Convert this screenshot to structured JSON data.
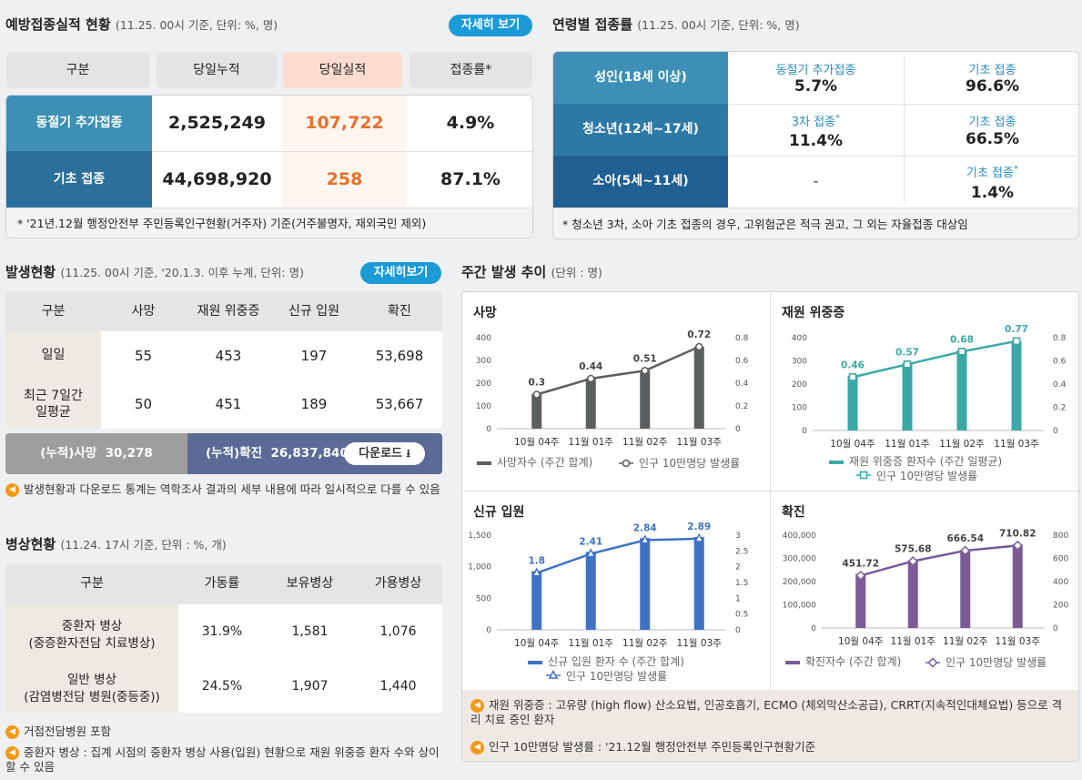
{
  "vaccination": {
    "title": "예방접종실적 현황",
    "subtitle": "(11.25. 00시 기준, 단위: %, 명)",
    "detail_button": "자세히 보기",
    "headers": [
      "구분",
      "당일누적",
      "당일실적",
      "접종률*"
    ],
    "rows": [
      {
        "label": "동절기 추가접종",
        "cumulative": "2,525,249",
        "daily": "107,722",
        "rate": "4.9%"
      },
      {
        "label": "기초 접종",
        "cumulative": "44,698,920",
        "daily": "258",
        "rate": "87.1%"
      }
    ],
    "footnote": "* '21년.12월 행정안전부 주민등록인구현황(거주자) 기준(거주불명자, 재외국민 제외)"
  },
  "age_vaccination": {
    "title": "연령별 접종률",
    "subtitle": "(11.25. 00시 기준, 단위: %, 명)",
    "rows": [
      {
        "label": "성인(18세 이상)",
        "c1_label": "동절기 추가접종",
        "c1_star": "",
        "c1_value": "5.7%",
        "c2_label": "기초 접종",
        "c2_star": "",
        "c2_value": "96.6%"
      },
      {
        "label": "청소년(12세~17세)",
        "c1_label": "3차 접종",
        "c1_star": "*",
        "c1_value": "11.4%",
        "c2_label": "기초 접종",
        "c2_star": "",
        "c2_value": "66.5%"
      },
      {
        "label": "소아(5세~11세)",
        "c1_label": "",
        "c1_star": "",
        "c1_value": "-",
        "c2_label": "기초 접종",
        "c2_star": "*",
        "c2_value": "1.4%"
      }
    ],
    "footnote": "* 청소년 3차, 소아 기초 접종의 경우, 고위험군은 적극 권고, 그 외는 자율접종 대상임"
  },
  "occurrence": {
    "title": "발생현황",
    "subtitle": "(11.25. 00시 기준, '20.1.3. 이후 누계, 단위: 명)",
    "detail_button": "자세히보기",
    "headers": [
      "구분",
      "사망",
      "재원 위중증",
      "신규 입원",
      "확진"
    ],
    "rows": [
      {
        "label": "일일",
        "death": "55",
        "severe": "453",
        "admission": "197",
        "confirmed": "53,698"
      },
      {
        "label": "최근 7일간\n일평균",
        "death": "50",
        "severe": "451",
        "admission": "189",
        "confirmed": "53,667"
      }
    ],
    "cum_death_label": "(누적)사망",
    "cum_death_value": "30,278",
    "cum_confirmed_label": "(누적)확진",
    "cum_confirmed_value": "26,837,840",
    "download_label": "다운로드",
    "note": "발생현황과 다운로드 통계는 역학조사 결과의 세부 내용에 따라 일시적으로 다를 수 있음"
  },
  "beds": {
    "title": "병상현황",
    "subtitle": "(11.24. 17시 기준, 단위 : %, 개)",
    "headers": [
      "구분",
      "가동률",
      "보유병상",
      "가용병상"
    ],
    "rows": [
      {
        "label1": "중환자 병상",
        "label2": "(중증환자전담 치료병상)",
        "rate": "31.9%",
        "owned": "1,581",
        "available": "1,076"
      },
      {
        "label1": "일반 병상",
        "label2": "(감염병전담 병원(중등중))",
        "rate": "24.5%",
        "owned": "1,907",
        "available": "1,440"
      }
    ],
    "note1": "거점전담병원 포함",
    "note2": "중환자 병상 : 집계 시점의 중환자 병상 사용(입원) 현황으로 재원 위중증 환자 수와 상이할 수 있음"
  },
  "weekly": {
    "title": "주간 발생 추이",
    "subtitle": "(단위 : 명)",
    "note1": "재원 위중증 : 고유량 (high flow) 산소요법, 인공호흡기, ECMO (체외막산소공급), CRRT(지속적인대체요법) 등으로 격리 치료 중인 환자",
    "note2": "인구 10만명당 발생률 : '21.12월 행정안전부 주민등록인구현황기준"
  },
  "chart_data": [
    {
      "type": "bar",
      "title": "사망",
      "categories": [
        "10월 04주",
        "11월 01주",
        "11월 02주",
        "11월 03주"
      ],
      "series": [
        {
          "name": "사망자수 (주간 합계)",
          "values": [
            152,
            222,
            255,
            360
          ]
        },
        {
          "name": "인구 10만명당 발생률",
          "type": "line",
          "axis": "right",
          "values": [
            0.3,
            0.44,
            0.51,
            0.72
          ]
        }
      ],
      "ylim": [
        0,
        400
      ],
      "yticks": [
        "0",
        "100",
        "200",
        "300",
        "400"
      ],
      "y2lim": [
        0,
        0.8
      ],
      "y2ticks": [
        "0",
        "0.2",
        "0.4",
        "0.6",
        "0.8"
      ],
      "color": "#5b5f60",
      "line_color": "#5b5f60",
      "marker": "circle"
    },
    {
      "type": "bar",
      "title": "재원 위중증",
      "categories": [
        "10월 04주",
        "11월 01주",
        "11월 02주",
        "11월 03주"
      ],
      "series": [
        {
          "name": "재원 위중증 환자수 (주간 일평균)",
          "values": [
            235,
            290,
            345,
            385
          ]
        },
        {
          "name": "인구 10만명당 발생률",
          "type": "line",
          "axis": "right",
          "values": [
            0.46,
            0.57,
            0.68,
            0.77
          ]
        }
      ],
      "ylim": [
        0,
        400
      ],
      "yticks": [
        "0",
        "100",
        "200",
        "300",
        "400"
      ],
      "y2lim": [
        0,
        0.8
      ],
      "y2ticks": [
        "0",
        "0.2",
        "0.4",
        "0.6",
        "0.8"
      ],
      "color": "#3aa9a6",
      "line_color": "#3aa9a6",
      "marker": "square"
    },
    {
      "type": "bar",
      "title": "신규 입원",
      "categories": [
        "10월 04주",
        "11월 01주",
        "11월 02주",
        "11월 03주"
      ],
      "series": [
        {
          "name": "신규 입원 환자 수 (주간 합계)",
          "values": [
            930,
            1235,
            1455,
            1470
          ]
        },
        {
          "name": "인구 10만명당 발생률",
          "type": "line",
          "axis": "right",
          "values": [
            1.8,
            2.41,
            2.84,
            2.89
          ]
        }
      ],
      "ylim": [
        0,
        1500
      ],
      "yticks": [
        "0",
        "500",
        "1,000",
        "1,500"
      ],
      "y2lim": [
        0,
        3
      ],
      "y2ticks": [
        "0",
        "0.5",
        "1",
        "1.5",
        "2",
        "2.5",
        "3"
      ],
      "color": "#3f72c3",
      "line_color": "#3f72c3",
      "marker": "triangle"
    },
    {
      "type": "bar",
      "title": "확진",
      "categories": [
        "10월 04주",
        "11월 01주",
        "11월 02주",
        "11월 03주"
      ],
      "series": [
        {
          "name": "확진자수 (주간 합계)",
          "values": [
            233000,
            292000,
            335000,
            360000
          ]
        },
        {
          "name": "인구 10만명당 발생률",
          "type": "line",
          "axis": "right",
          "values": [
            451.72,
            575.68,
            666.54,
            710.82
          ]
        }
      ],
      "ylim": [
        0,
        400000
      ],
      "yticks": [
        "0",
        "100,000",
        "200,000",
        "300,000",
        "400,000"
      ],
      "y2lim": [
        0,
        800
      ],
      "y2ticks": [
        "0",
        "200",
        "400",
        "600",
        "800"
      ],
      "color": "#7a5b97",
      "line_color": "#7a5b97",
      "marker": "diamond"
    }
  ]
}
